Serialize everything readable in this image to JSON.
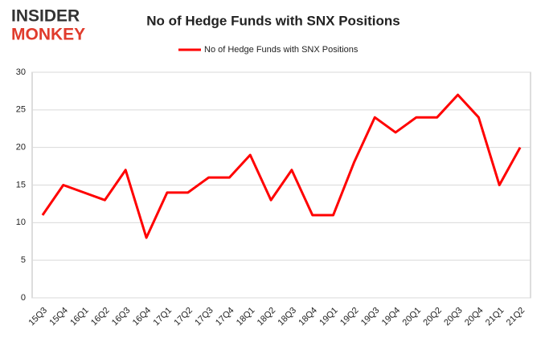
{
  "logo": {
    "line1": "INSIDER",
    "line2": "MONKEY"
  },
  "chart_data": {
    "type": "line",
    "title": "No of Hedge Funds with SNX Positions",
    "categories": [
      "15Q3",
      "15Q4",
      "16Q1",
      "16Q2",
      "16Q3",
      "16Q4",
      "17Q1",
      "17Q2",
      "17Q3",
      "17Q4",
      "18Q1",
      "18Q2",
      "18Q3",
      "18Q4",
      "19Q1",
      "19Q2",
      "19Q3",
      "19Q4",
      "20Q1",
      "20Q2",
      "20Q3",
      "20Q4",
      "21Q1",
      "21Q2"
    ],
    "series": [
      {
        "name": "No of Hedge Funds with SNX Positions",
        "color": "#ff0000",
        "values": [
          11,
          15,
          14,
          13,
          17,
          8,
          14,
          14,
          16,
          16,
          19,
          13,
          17,
          11,
          11,
          18,
          24,
          22,
          24,
          24,
          27,
          24,
          15,
          20
        ]
      }
    ],
    "ylim": [
      0,
      30
    ],
    "yticks": [
      0,
      5,
      10,
      15,
      20,
      25,
      30
    ],
    "grid": true,
    "legend": "top"
  }
}
